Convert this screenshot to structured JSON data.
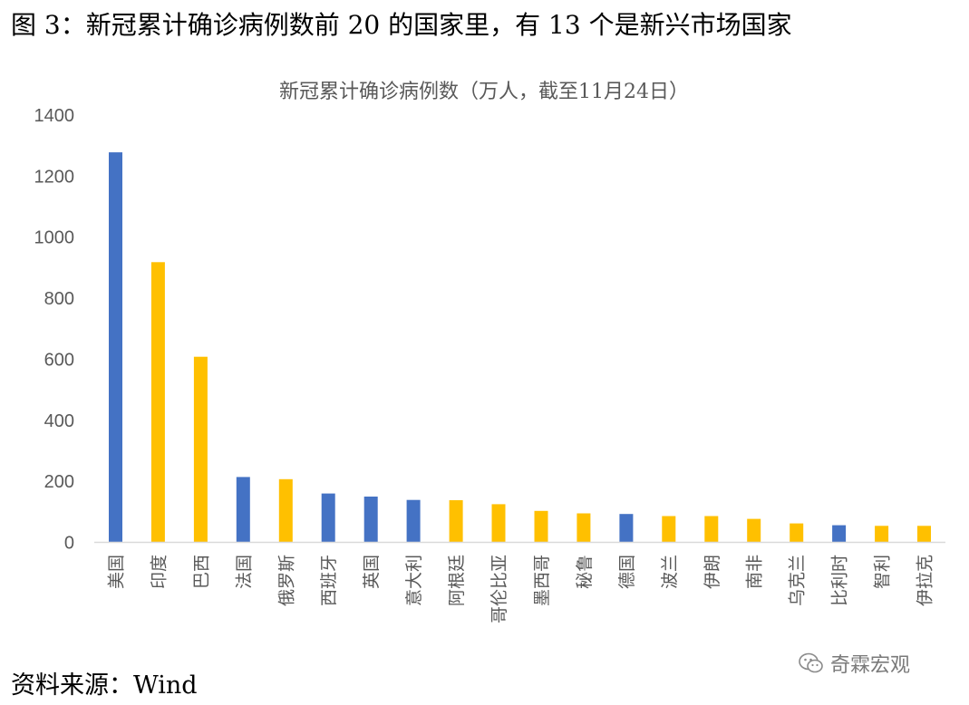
{
  "figure_title": "图 3：新冠累计确诊病例数前 20 的国家里，有 13 个是新兴市场国家",
  "source_text": "资料来源：Wind",
  "watermark_text": "奇霖宏观",
  "colors": {
    "developed": "#4472C4",
    "emerging": "#FFC000",
    "axis": "#D9D9D9",
    "text": "#595959"
  },
  "chart_data": {
    "type": "bar",
    "title": "新冠累计确诊病例数（万人，截至11月24日）",
    "xlabel": "",
    "ylabel": "",
    "ylim": [
      0,
      1400
    ],
    "yticks": [
      0,
      200,
      400,
      600,
      800,
      1000,
      1200,
      1400
    ],
    "grid": false,
    "legend": "none",
    "categories": [
      "美国",
      "印度",
      "巴西",
      "法国",
      "俄罗斯",
      "西班牙",
      "英国",
      "意大利",
      "阿根廷",
      "哥伦比亚",
      "墨西哥",
      "秘鲁",
      "德国",
      "波兰",
      "伊朗",
      "南非",
      "乌克兰",
      "比利时",
      "智利",
      "伊拉克"
    ],
    "values": [
      1278,
      918,
      608,
      214,
      207,
      160,
      150,
      139,
      138,
      125,
      103,
      95,
      93,
      86,
      86,
      77,
      62,
      56,
      54,
      54
    ],
    "groups": [
      "developed",
      "emerging",
      "emerging",
      "developed",
      "emerging",
      "developed",
      "developed",
      "developed",
      "emerging",
      "emerging",
      "emerging",
      "emerging",
      "developed",
      "emerging",
      "emerging",
      "emerging",
      "emerging",
      "developed",
      "emerging",
      "emerging"
    ]
  }
}
